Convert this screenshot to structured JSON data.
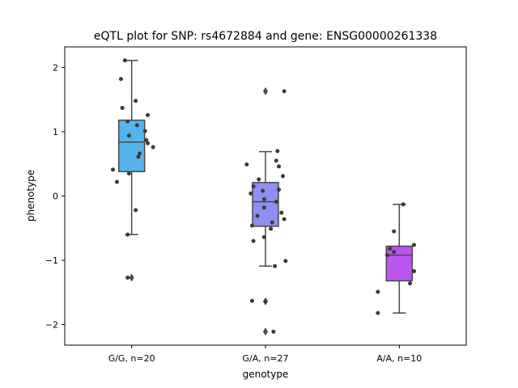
{
  "chart_data": {
    "type": "box",
    "title": "eQTL plot for SNP: rs4672884 and gene: ENSG00000261338",
    "xlabel": "genotype",
    "ylabel": "phenotype",
    "ylim": [
      -2.32,
      2.32
    ],
    "yticks": [
      -2,
      -1,
      0,
      1,
      2
    ],
    "ytick_labels": [
      "−2",
      "−1",
      "0",
      "1",
      "2"
    ],
    "grid": false,
    "legend": "none",
    "categories": [
      "G/G, n=20",
      "G/A, n=27",
      "A/A, n=10"
    ],
    "boxes": [
      {
        "color": "#55b4ec",
        "q1": 0.38,
        "median": 0.84,
        "q3": 1.18,
        "whisker_low": -0.6,
        "whisker_high": 2.11,
        "outliers": [
          -1.27
        ],
        "points": [
          2.11,
          1.82,
          1.48,
          1.37,
          1.26,
          1.16,
          1.1,
          1.01,
          0.94,
          0.87,
          0.82,
          0.76,
          0.66,
          0.61,
          0.41,
          0.35,
          0.22,
          -0.22,
          -0.6,
          -1.27
        ],
        "jitter": [
          -0.05,
          -0.08,
          0.03,
          -0.07,
          0.12,
          -0.03,
          0.04,
          0.1,
          -0.02,
          0.11,
          0.12,
          0.16,
          0.06,
          0.05,
          -0.14,
          -0.02,
          -0.11,
          0.03,
          -0.03,
          -0.03
        ]
      },
      {
        "color": "#8f8ef2",
        "q1": -0.47,
        "median": -0.09,
        "q3": 0.21,
        "whisker_low": -1.09,
        "whisker_high": 0.69,
        "outliers": [
          1.63,
          -1.64,
          -2.11
        ],
        "points": [
          1.63,
          0.7,
          0.55,
          0.49,
          0.46,
          0.31,
          0.26,
          0.15,
          0.1,
          0.08,
          0.04,
          -0.05,
          -0.09,
          -0.18,
          -0.26,
          -0.31,
          -0.36,
          -0.41,
          -0.46,
          -0.51,
          -0.64,
          -0.7,
          -1.01,
          -1.09,
          -1.63,
          -1.64,
          -2.11
        ],
        "jitter": [
          0.14,
          0.09,
          0.08,
          -0.14,
          0.1,
          0.13,
          -0.05,
          -0.09,
          0.1,
          -0.02,
          -0.11,
          -0.01,
          0.08,
          -0.01,
          0.12,
          -0.06,
          0.14,
          0.05,
          -0.1,
          0.04,
          -0.01,
          -0.09,
          0.15,
          0.07,
          -0.1,
          0.0,
          0.06
        ]
      },
      {
        "color": "#bb55ee",
        "q1": -1.32,
        "median": -0.92,
        "q3": -0.78,
        "whisker_low": -1.82,
        "whisker_high": -0.13,
        "outliers": [],
        "points": [
          -0.13,
          -0.55,
          -0.76,
          -0.82,
          -0.87,
          -0.92,
          -1.17,
          -1.36,
          -1.49,
          -1.82
        ],
        "jitter": [
          0.03,
          -0.04,
          0.11,
          -0.07,
          -0.04,
          -0.09,
          0.11,
          0.08,
          -0.16,
          -0.16
        ]
      }
    ]
  }
}
